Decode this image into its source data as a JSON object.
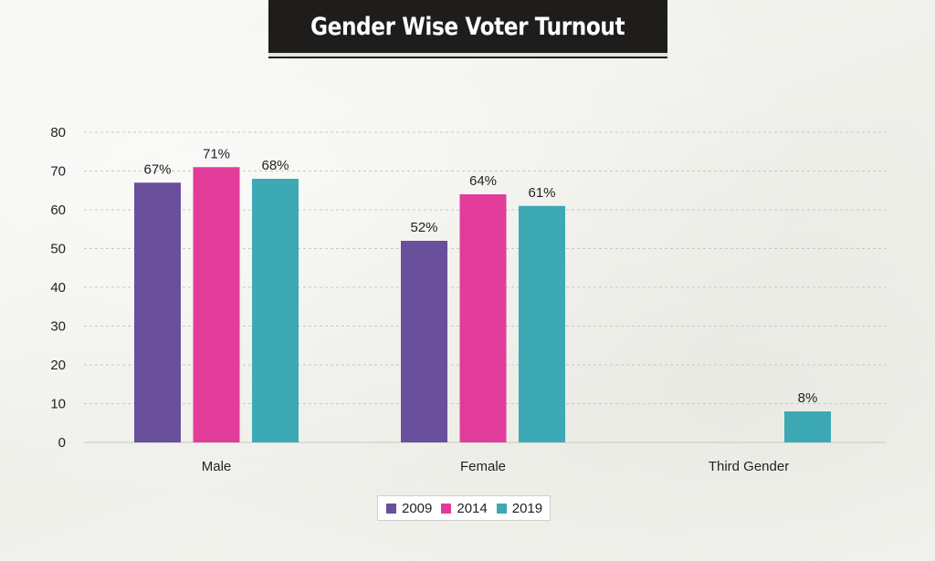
{
  "chart_data": {
    "type": "bar",
    "title": "Gender Wise Voter Turnout",
    "categories": [
      "Male",
      "Female",
      "Third Gender"
    ],
    "series": [
      {
        "name": "2009",
        "color": "#6a4f9c",
        "values": [
          67,
          52,
          null
        ],
        "labels": [
          "67%",
          "52%",
          ""
        ]
      },
      {
        "name": "2014",
        "color": "#e23c9a",
        "values": [
          71,
          64,
          null
        ],
        "labels": [
          "71%",
          "64%",
          ""
        ]
      },
      {
        "name": "2019",
        "color": "#3da9b5",
        "values": [
          68,
          61,
          8
        ],
        "labels": [
          "68%",
          "61%",
          "8%"
        ]
      }
    ],
    "yticks": [
      "0",
      "10",
      "20",
      "30",
      "40",
      "50",
      "60",
      "70",
      "80"
    ],
    "ylim": [
      0,
      80
    ],
    "grid": true,
    "legend_position": "bottom-center"
  }
}
